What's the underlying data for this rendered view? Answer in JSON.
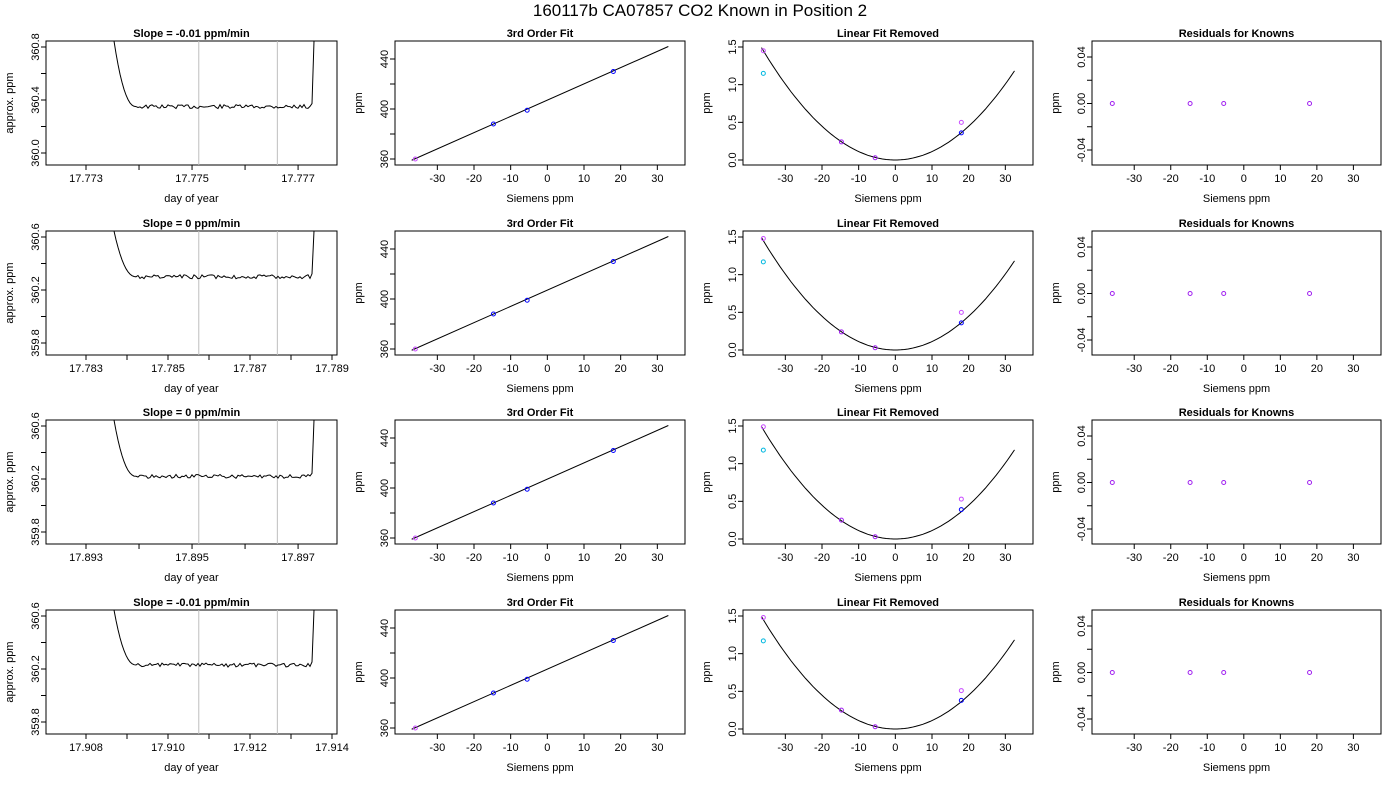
{
  "title": "160117b     CA07857   CO2 Known in Position  2",
  "colors": {
    "axis": "#000000",
    "trace": "#000000",
    "vline": "#bebebe",
    "point_blue": "#0000ff",
    "point_purple": "#a020f0",
    "point_magenta": "#c84cff",
    "point_cyan": "#00b8e0"
  },
  "chart_data": [
    {
      "type": "line",
      "title": "Slope =  -0.01  ppm/min",
      "xlabel": "day of year",
      "ylabel": "approx. ppm",
      "xticks": [
        "17.773",
        "17.775",
        "17.777"
      ],
      "yticks": [
        "360.0",
        "360.4",
        "360.8"
      ],
      "baseline": 360.35
    },
    {
      "type": "line",
      "title": "3rd Order Fit",
      "xlabel": "Siemens ppm",
      "ylabel": "ppm",
      "xticks": [
        "-30",
        "-20",
        "-10",
        "0",
        "10",
        "20",
        "30"
      ],
      "yticks": [
        "360",
        "400",
        "440"
      ],
      "points": [
        {
          "x": -36,
          "y": 360
        },
        {
          "x": -14.7,
          "y": 388
        },
        {
          "x": -5.5,
          "y": 399
        },
        {
          "x": 18,
          "y": 430
        }
      ]
    },
    {
      "type": "scatter",
      "title": "Linear Fit Removed",
      "xlabel": "Siemens ppm",
      "ylabel": "ppm",
      "xticks": [
        "-30",
        "-20",
        "-10",
        "0",
        "10",
        "20",
        "30"
      ],
      "yticks": [
        "0.0",
        "0.5",
        "1.0",
        "1.5"
      ],
      "points": [
        {
          "x": -36,
          "y": 1.45
        },
        {
          "x": -36,
          "y": 1.15
        },
        {
          "x": -14.7,
          "y": 0.24
        },
        {
          "x": -5.5,
          "y": 0.03
        },
        {
          "x": 18,
          "y": 0.5
        },
        {
          "x": 18,
          "y": 0.36
        }
      ]
    },
    {
      "type": "scatter",
      "title": "Residuals for Knowns",
      "xlabel": "Siemens ppm",
      "ylabel": "ppm",
      "xticks": [
        "-30",
        "-20",
        "-10",
        "0",
        "10",
        "20",
        "30"
      ],
      "yticks": [
        "-0.04",
        "0.00",
        "0.04"
      ],
      "points": [
        {
          "x": -36,
          "y": 0
        },
        {
          "x": -14.7,
          "y": 0
        },
        {
          "x": -5.5,
          "y": 0
        },
        {
          "x": 18,
          "y": 0
        }
      ]
    },
    {
      "type": "line",
      "title": "Slope =  0  ppm/min",
      "xlabel": "day of year",
      "ylabel": "approx. ppm",
      "xticks": [
        "17.783",
        "17.785",
        "17.787",
        "17.789"
      ],
      "yticks": [
        "359.8",
        "360.2",
        "360.6"
      ],
      "baseline": 360.3
    },
    {
      "type": "line",
      "title": "3rd Order Fit",
      "xlabel": "Siemens ppm",
      "ylabel": "ppm",
      "xticks": [
        "-30",
        "-20",
        "-10",
        "0",
        "10",
        "20",
        "30"
      ],
      "yticks": [
        "360",
        "400",
        "440"
      ],
      "points": [
        {
          "x": -36,
          "y": 360
        },
        {
          "x": -14.7,
          "y": 388
        },
        {
          "x": -5.5,
          "y": 399
        },
        {
          "x": 18,
          "y": 430
        }
      ]
    },
    {
      "type": "scatter",
      "title": "Linear Fit Removed",
      "xlabel": "Siemens ppm",
      "ylabel": "ppm",
      "xticks": [
        "-30",
        "-20",
        "-10",
        "0",
        "10",
        "20",
        "30"
      ],
      "yticks": [
        "0.0",
        "0.5",
        "1.0",
        "1.5"
      ],
      "points": [
        {
          "x": -36,
          "y": 1.48
        },
        {
          "x": -36,
          "y": 1.17
        },
        {
          "x": -14.7,
          "y": 0.24
        },
        {
          "x": -5.5,
          "y": 0.03
        },
        {
          "x": 18,
          "y": 0.5
        },
        {
          "x": 18,
          "y": 0.36
        }
      ]
    },
    {
      "type": "scatter",
      "title": "Residuals for Knowns",
      "xlabel": "Siemens ppm",
      "ylabel": "ppm",
      "xticks": [
        "-30",
        "-20",
        "-10",
        "0",
        "10",
        "20",
        "30"
      ],
      "yticks": [
        "-0.04",
        "0.00",
        "0.04"
      ],
      "points": [
        {
          "x": -36,
          "y": 0
        },
        {
          "x": -14.7,
          "y": 0
        },
        {
          "x": -5.5,
          "y": 0
        },
        {
          "x": 18,
          "y": 0
        }
      ]
    },
    {
      "type": "line",
      "title": "Slope =  0  ppm/min",
      "xlabel": "day of year",
      "ylabel": "approx. ppm",
      "xticks": [
        "17.893",
        "17.895",
        "17.897"
      ],
      "yticks": [
        "359.8",
        "360.2",
        "360.6"
      ],
      "baseline": 360.22
    },
    {
      "type": "line",
      "title": "3rd Order Fit",
      "xlabel": "Siemens ppm",
      "ylabel": "ppm",
      "xticks": [
        "-30",
        "-20",
        "-10",
        "0",
        "10",
        "20",
        "30"
      ],
      "yticks": [
        "360",
        "400",
        "440"
      ],
      "points": [
        {
          "x": -36,
          "y": 360
        },
        {
          "x": -14.7,
          "y": 388
        },
        {
          "x": -5.5,
          "y": 399
        },
        {
          "x": 18,
          "y": 430
        }
      ]
    },
    {
      "type": "scatter",
      "title": "Linear Fit Removed",
      "xlabel": "Siemens ppm",
      "ylabel": "ppm",
      "xticks": [
        "-30",
        "-20",
        "-10",
        "0",
        "10",
        "20",
        "30"
      ],
      "yticks": [
        "0.0",
        "0.5",
        "1.0",
        "1.5"
      ],
      "points": [
        {
          "x": -36,
          "y": 1.49
        },
        {
          "x": -36,
          "y": 1.18
        },
        {
          "x": -14.7,
          "y": 0.25
        },
        {
          "x": -5.5,
          "y": 0.03
        },
        {
          "x": 18,
          "y": 0.53
        },
        {
          "x": 18,
          "y": 0.39
        }
      ]
    },
    {
      "type": "scatter",
      "title": "Residuals for Knowns",
      "xlabel": "Siemens ppm",
      "ylabel": "ppm",
      "xticks": [
        "-30",
        "-20",
        "-10",
        "0",
        "10",
        "20",
        "30"
      ],
      "yticks": [
        "-0.04",
        "0.00",
        "0.04"
      ],
      "points": [
        {
          "x": -36,
          "y": 0
        },
        {
          "x": -14.7,
          "y": 0
        },
        {
          "x": -5.5,
          "y": 0
        },
        {
          "x": 18,
          "y": 0
        }
      ]
    },
    {
      "type": "line",
      "title": "Slope =  -0.01  ppm/min",
      "xlabel": "day of year",
      "ylabel": "approx. ppm",
      "xticks": [
        "17.908",
        "17.910",
        "17.912",
        "17.914"
      ],
      "yticks": [
        "359.8",
        "360.2",
        "360.6"
      ],
      "baseline": 360.23
    },
    {
      "type": "line",
      "title": "3rd Order Fit",
      "xlabel": "Siemens ppm",
      "ylabel": "ppm",
      "xticks": [
        "-30",
        "-20",
        "-10",
        "0",
        "10",
        "20",
        "30"
      ],
      "yticks": [
        "360",
        "400",
        "440"
      ],
      "points": [
        {
          "x": -36,
          "y": 360
        },
        {
          "x": -14.7,
          "y": 388
        },
        {
          "x": -5.5,
          "y": 399
        },
        {
          "x": 18,
          "y": 430
        }
      ]
    },
    {
      "type": "scatter",
      "title": "Linear Fit Removed",
      "xlabel": "Siemens ppm",
      "ylabel": "ppm",
      "xticks": [
        "-30",
        "-20",
        "-10",
        "0",
        "10",
        "20",
        "30"
      ],
      "yticks": [
        "0.0",
        "0.5",
        "1.0",
        "1.5"
      ],
      "points": [
        {
          "x": -36,
          "y": 1.48
        },
        {
          "x": -36,
          "y": 1.17
        },
        {
          "x": -14.7,
          "y": 0.25
        },
        {
          "x": -5.5,
          "y": 0.03
        },
        {
          "x": 18,
          "y": 0.51
        },
        {
          "x": 18,
          "y": 0.38
        }
      ]
    },
    {
      "type": "scatter",
      "title": "Residuals for Knowns",
      "xlabel": "Siemens ppm",
      "ylabel": "ppm",
      "xticks": [
        "-30",
        "-20",
        "-10",
        "0",
        "10",
        "20",
        "30"
      ],
      "yticks": [
        "-0.04",
        "0.00",
        "0.04"
      ],
      "points": [
        {
          "x": -36,
          "y": 0
        },
        {
          "x": -14.7,
          "y": 0
        },
        {
          "x": -5.5,
          "y": 0
        },
        {
          "x": 18,
          "y": 0
        }
      ]
    }
  ]
}
